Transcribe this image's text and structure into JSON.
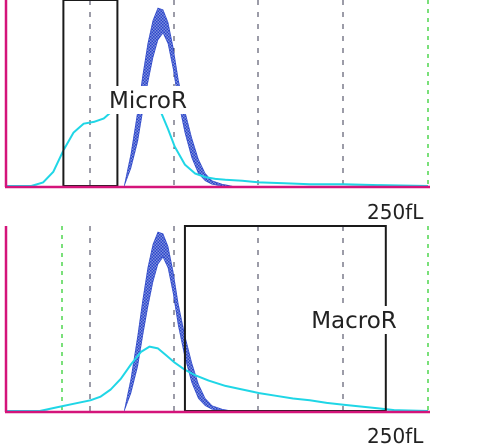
{
  "chart_data": [
    {
      "type": "area",
      "box_label": "MicroR",
      "x_end_label": "250fL",
      "xlim": [
        0,
        250
      ],
      "grid": "vertical dashed",
      "box_x": [
        34,
        66
      ],
      "reference_band": {
        "x": [
          70,
          74,
          78,
          81,
          84,
          87,
          90,
          93,
          96,
          99,
          102,
          106,
          110,
          114,
          118,
          122,
          128,
          134
        ],
        "low": [
          0,
          0.1,
          0.25,
          0.42,
          0.58,
          0.72,
          0.82,
          0.86,
          0.8,
          0.66,
          0.48,
          0.3,
          0.16,
          0.07,
          0.03,
          0.01,
          0,
          0
        ],
        "high": [
          0,
          0.18,
          0.42,
          0.62,
          0.8,
          0.93,
          1.0,
          0.99,
          0.92,
          0.78,
          0.6,
          0.42,
          0.27,
          0.15,
          0.07,
          0.03,
          0.01,
          0
        ]
      },
      "sample_curve": {
        "x": [
          0,
          15,
          22,
          28,
          34,
          40,
          46,
          52,
          58,
          64,
          70,
          76,
          80,
          84,
          88,
          92,
          96,
          100,
          106,
          112,
          118,
          124,
          130,
          140,
          150,
          165,
          180,
          200,
          220,
          250
        ],
        "y": [
          0,
          0,
          0.02,
          0.08,
          0.2,
          0.3,
          0.35,
          0.36,
          0.38,
          0.43,
          0.5,
          0.54,
          0.55,
          0.54,
          0.49,
          0.41,
          0.32,
          0.22,
          0.12,
          0.07,
          0.05,
          0.04,
          0.035,
          0.03,
          0.02,
          0.015,
          0.01,
          0.01,
          0.005,
          0
        ]
      }
    },
    {
      "type": "area",
      "box_label": "MacroR",
      "x_end_label": "250fL",
      "xlim": [
        0,
        250
      ],
      "grid": "vertical dashed",
      "box_x": [
        106,
        225
      ],
      "reference_band": {
        "x": [
          70,
          74,
          78,
          81,
          84,
          87,
          90,
          93,
          96,
          99,
          102,
          106,
          110,
          114,
          118,
          122,
          128,
          134
        ],
        "low": [
          0,
          0.1,
          0.25,
          0.42,
          0.58,
          0.72,
          0.82,
          0.86,
          0.8,
          0.66,
          0.48,
          0.3,
          0.16,
          0.07,
          0.03,
          0.01,
          0,
          0
        ],
        "high": [
          0,
          0.18,
          0.42,
          0.62,
          0.8,
          0.93,
          1.0,
          0.99,
          0.92,
          0.78,
          0.6,
          0.42,
          0.27,
          0.15,
          0.07,
          0.03,
          0.01,
          0
        ]
      },
      "sample_curve": {
        "x": [
          0,
          20,
          30,
          40,
          50,
          56,
          62,
          68,
          74,
          80,
          85,
          90,
          95,
          100,
          106,
          112,
          120,
          130,
          140,
          150,
          160,
          170,
          180,
          190,
          200,
          210,
          220,
          230,
          250
        ],
        "y": [
          0,
          0,
          0.02,
          0.04,
          0.06,
          0.08,
          0.12,
          0.18,
          0.26,
          0.33,
          0.36,
          0.35,
          0.31,
          0.27,
          0.23,
          0.2,
          0.17,
          0.14,
          0.12,
          0.1,
          0.085,
          0.07,
          0.06,
          0.045,
          0.035,
          0.025,
          0.015,
          0.005,
          0
        ]
      }
    }
  ],
  "colors": {
    "axis": "#d4147a",
    "grid": "#3a3a50",
    "edge_grid": "#22cc22",
    "reference_band": "#2b45c8",
    "sample_curve": "#1fd6e6",
    "box": "#1a1a1a",
    "label_text": "#222222"
  }
}
